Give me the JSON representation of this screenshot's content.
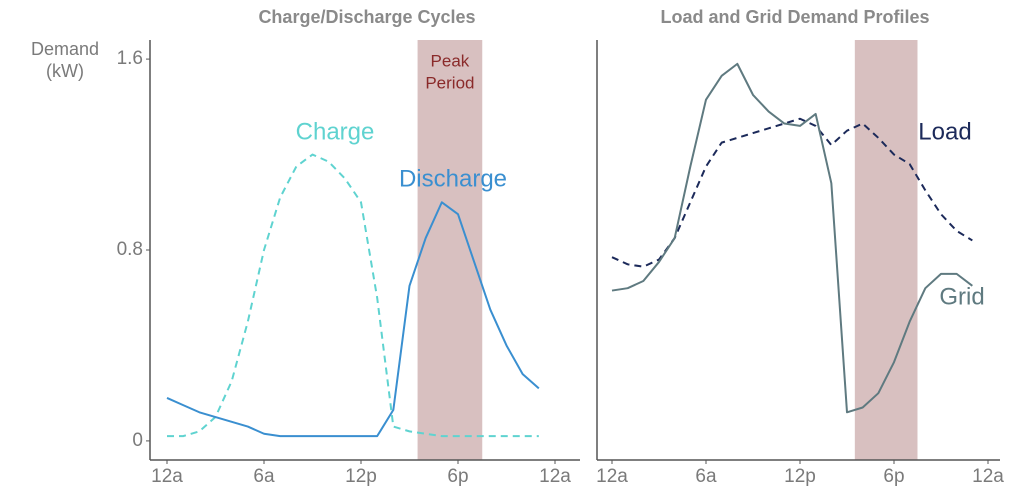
{
  "chart_data": [
    {
      "type": "line",
      "title": "Charge/Discharge Cycles",
      "y_label_lines": [
        "Demand",
        "(kW)"
      ],
      "peak_label_lines": [
        "Peak",
        "Period"
      ],
      "peak_period": [
        15.5,
        19.5
      ],
      "peak_color": "#d8c0c0",
      "x": [
        0,
        1,
        2,
        3,
        4,
        5,
        6,
        7,
        8,
        9,
        10,
        11,
        12,
        13,
        14,
        15,
        16,
        17,
        18,
        19,
        20,
        21,
        22,
        23
      ],
      "xlim": [
        0,
        24
      ],
      "xticks": [
        {
          "value": 0,
          "label": "12a"
        },
        {
          "value": 6,
          "label": "6a"
        },
        {
          "value": 12,
          "label": "12p"
        },
        {
          "value": 18,
          "label": "6p"
        },
        {
          "value": 24,
          "label": "12a"
        }
      ],
      "ylim": [
        -0.08,
        1.68
      ],
      "yticks": [
        0,
        0.8,
        1.6
      ],
      "series": [
        {
          "name": "Charge",
          "color": "#5fd3d0",
          "dashed": true,
          "values": [
            0.02,
            0.02,
            0.04,
            0.1,
            0.25,
            0.5,
            0.8,
            1.02,
            1.15,
            1.2,
            1.17,
            1.1,
            1.0,
            0.6,
            0.06,
            0.04,
            0.03,
            0.02,
            0.02,
            0.02,
            0.02,
            0.02,
            0.02,
            0.02
          ]
        },
        {
          "name": "Discharge",
          "color": "#3a8fd0",
          "dashed": false,
          "values": [
            0.18,
            0.15,
            0.12,
            0.1,
            0.08,
            0.06,
            0.03,
            0.02,
            0.02,
            0.02,
            0.02,
            0.02,
            0.02,
            0.02,
            0.13,
            0.65,
            0.85,
            1.0,
            0.95,
            0.75,
            0.55,
            0.4,
            0.28,
            0.22
          ]
        }
      ]
    },
    {
      "type": "line",
      "title": "Load and Grid Demand Profiles",
      "peak_period": [
        15.5,
        19.5
      ],
      "peak_color": "#d8c0c0",
      "x": [
        0,
        1,
        2,
        3,
        4,
        5,
        6,
        7,
        8,
        9,
        10,
        11,
        12,
        13,
        14,
        15,
        16,
        17,
        18,
        19,
        20,
        21,
        22,
        23
      ],
      "xlim": [
        0,
        24
      ],
      "xticks": [
        {
          "value": 0,
          "label": "12a"
        },
        {
          "value": 6,
          "label": "6a"
        },
        {
          "value": 12,
          "label": "12p"
        },
        {
          "value": 18,
          "label": "6p"
        },
        {
          "value": 24,
          "label": "12a"
        }
      ],
      "ylim": [
        -0.08,
        1.68
      ],
      "series": [
        {
          "name": "Load",
          "color": "#1c2a5a",
          "dashed": true,
          "values": [
            0.77,
            0.74,
            0.73,
            0.76,
            0.85,
            1.0,
            1.15,
            1.25,
            1.27,
            1.29,
            1.31,
            1.33,
            1.35,
            1.32,
            1.24,
            1.3,
            1.33,
            1.27,
            1.2,
            1.16,
            1.05,
            0.95,
            0.88,
            0.84
          ]
        },
        {
          "name": "Grid",
          "color": "#5f7a80",
          "dashed": false,
          "values": [
            0.63,
            0.64,
            0.67,
            0.75,
            0.85,
            1.15,
            1.43,
            1.53,
            1.58,
            1.45,
            1.38,
            1.33,
            1.32,
            1.37,
            1.08,
            0.12,
            0.14,
            0.2,
            0.33,
            0.5,
            0.64,
            0.7,
            0.7,
            0.65
          ]
        }
      ]
    }
  ]
}
